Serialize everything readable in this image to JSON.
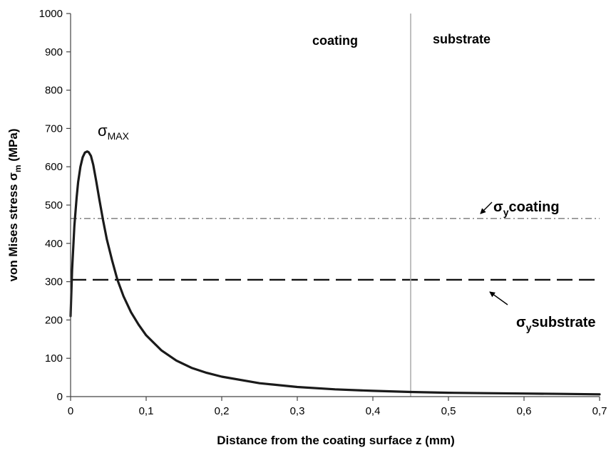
{
  "chart_data": {
    "type": "line",
    "title": "",
    "xlabel": "Distance from the coating surface z (mm)",
    "ylabel": {
      "prefix": "von Mises stress σ",
      "subscript": "m",
      "suffix": " (MPa)"
    },
    "xlim": [
      0,
      0.7
    ],
    "ylim": [
      0,
      1000
    ],
    "x_ticks": [
      "0",
      "0,1",
      "0,2",
      "0,3",
      "0,4",
      "0,5",
      "0,6",
      "0,7"
    ],
    "y_ticks": [
      "0",
      "100",
      "200",
      "300",
      "400",
      "500",
      "600",
      "700",
      "800",
      "900",
      "1000"
    ],
    "grid": false,
    "series": [
      {
        "name": "",
        "style": "solid",
        "color": "#1a1a1a",
        "x": [
          0.0,
          0.002,
          0.005,
          0.008,
          0.01,
          0.013,
          0.016,
          0.019,
          0.022,
          0.024,
          0.027,
          0.03,
          0.034,
          0.038,
          0.043,
          0.048,
          0.055,
          0.062,
          0.07,
          0.08,
          0.09,
          0.1,
          0.12,
          0.14,
          0.16,
          0.18,
          0.2,
          0.25,
          0.3,
          0.35,
          0.4,
          0.45,
          0.5,
          0.55,
          0.6,
          0.65,
          0.7
        ],
        "y": [
          210,
          330,
          445,
          520,
          560,
          600,
          625,
          637,
          640,
          638,
          628,
          605,
          562,
          515,
          460,
          410,
          355,
          305,
          262,
          220,
          188,
          160,
          121,
          94,
          75,
          62,
          52,
          35,
          25,
          19,
          15,
          12,
          10,
          9,
          8,
          7,
          6
        ]
      }
    ],
    "reference_lines": [
      {
        "kind": "horizontal",
        "y": 465,
        "style": "dash-dot",
        "color": "#777777"
      },
      {
        "kind": "horizontal",
        "y": 305,
        "style": "dashed",
        "color": "#111111"
      },
      {
        "kind": "vertical",
        "x": 0.45,
        "style": "solid",
        "color": "#aaaaaa"
      }
    ],
    "annotations": {
      "region_coating": "coating",
      "region_substrate": "substrate",
      "sigma_max": {
        "symbol": "σ",
        "sub": "MAX"
      },
      "sigma_y_coating": {
        "symbol": "σ",
        "sub": "y",
        "text": "coating"
      },
      "sigma_y_substrate": {
        "symbol": "σ",
        "sub": "y",
        "text": "substrate"
      }
    }
  }
}
